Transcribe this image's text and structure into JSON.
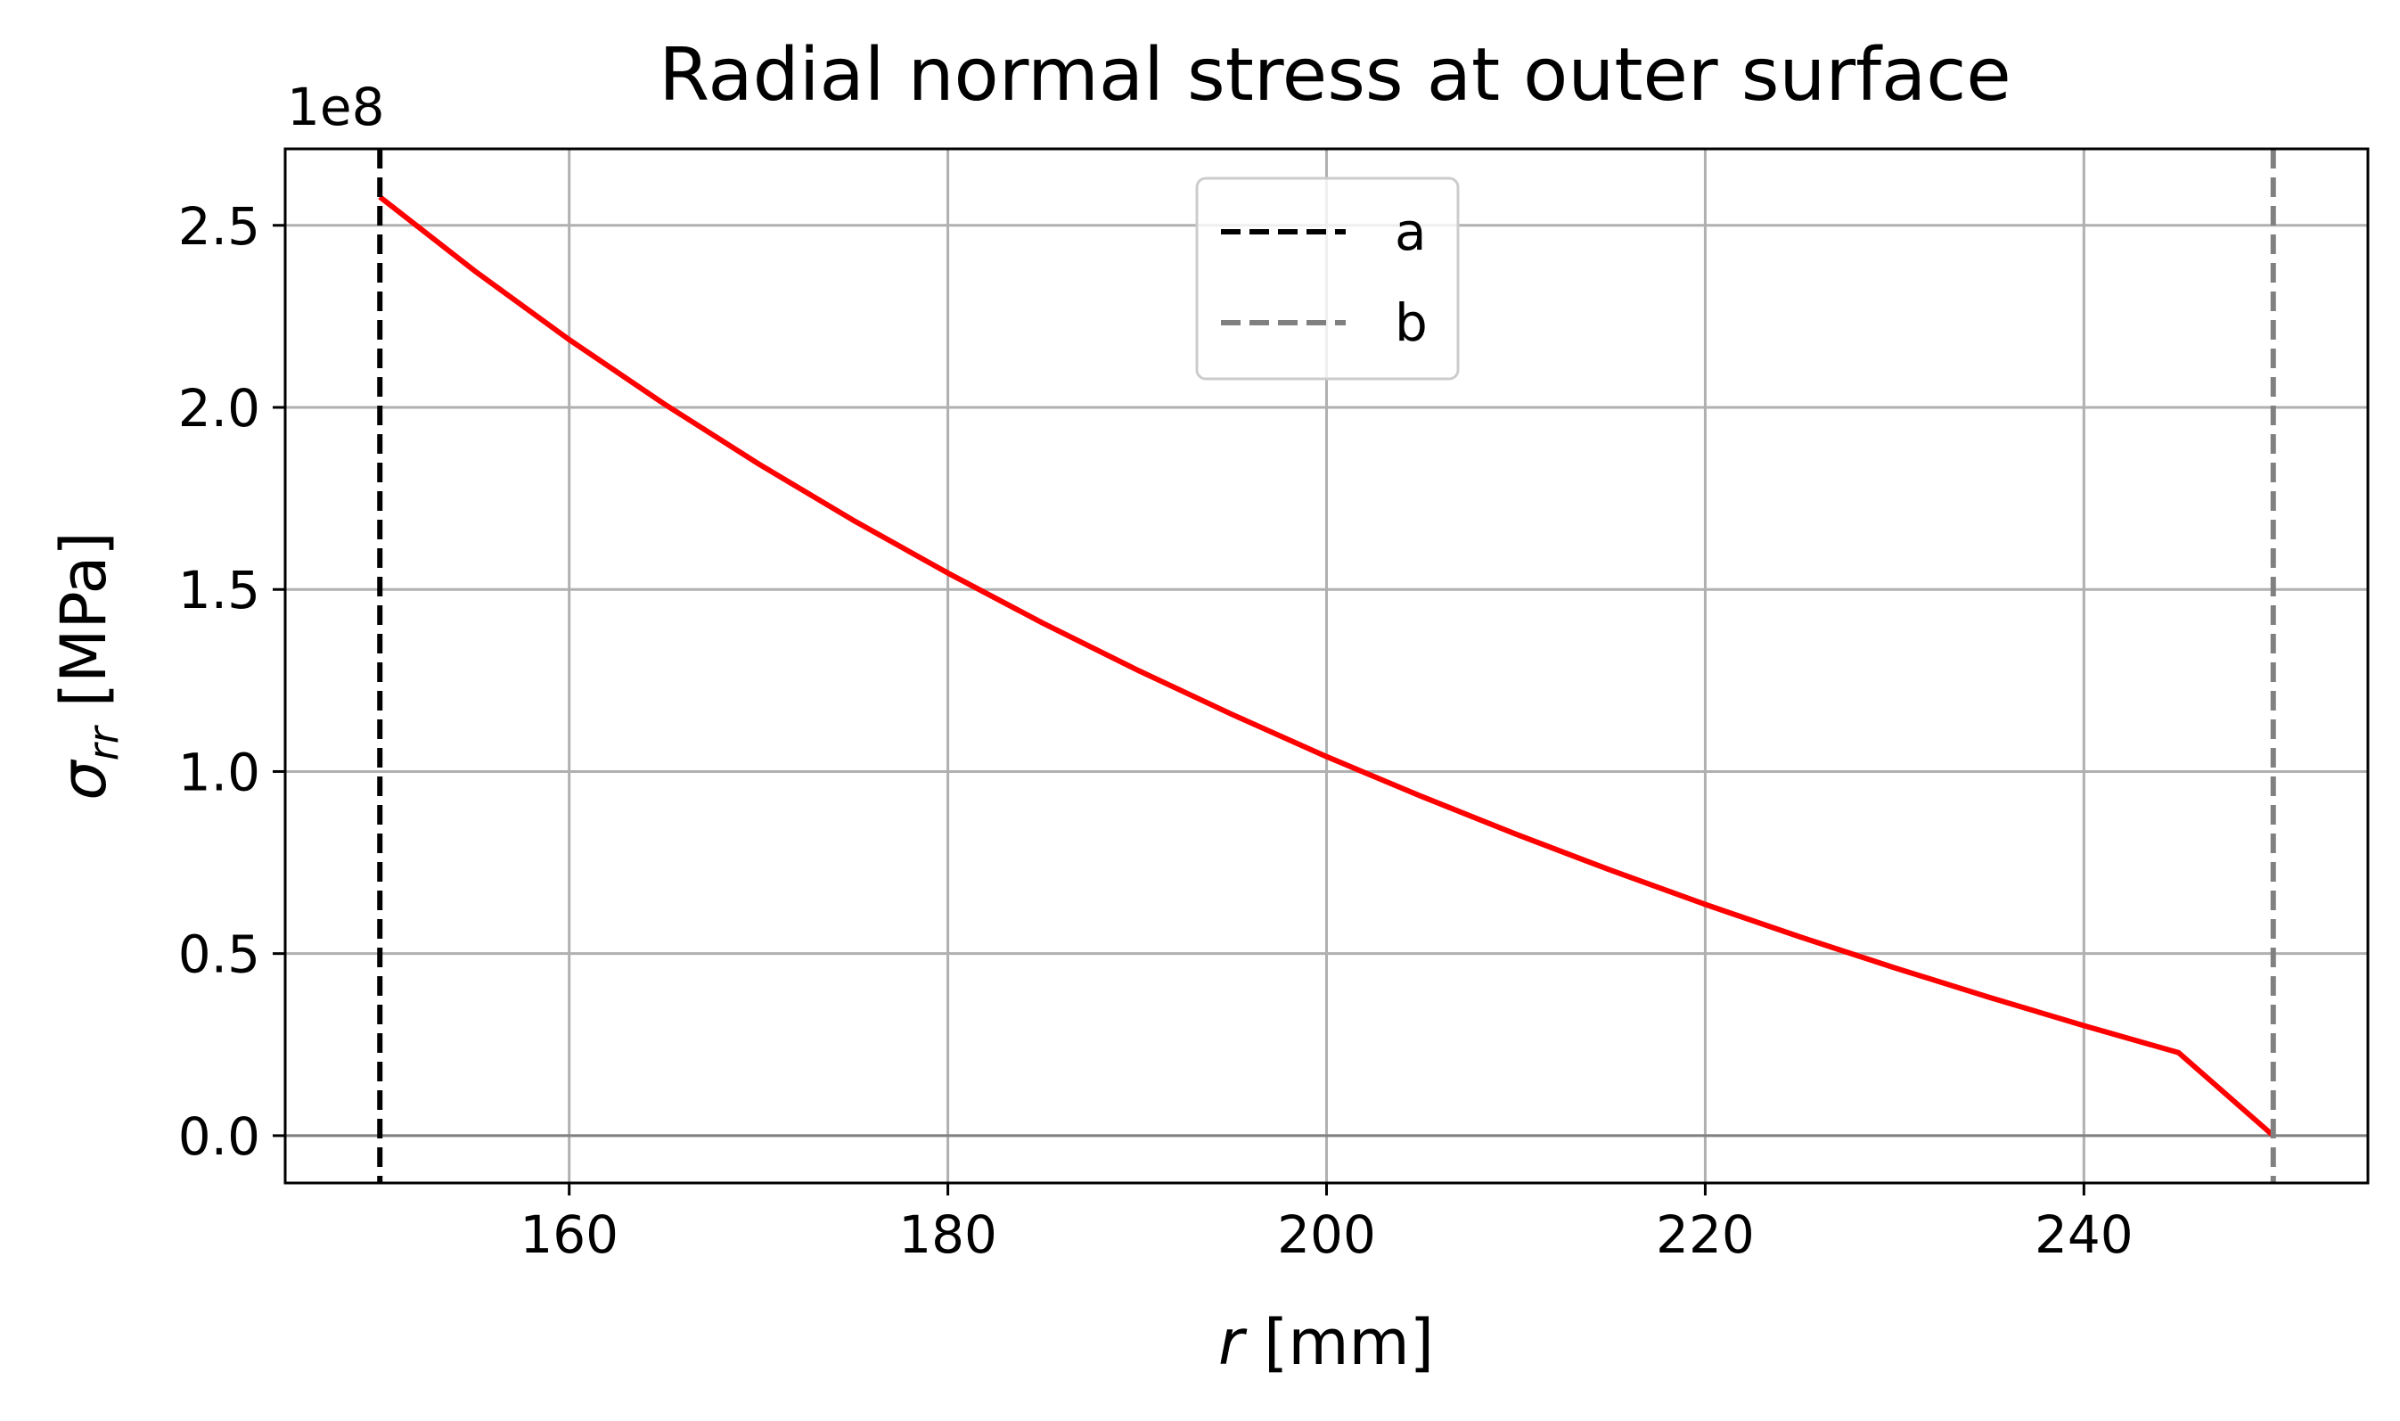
{
  "chart_data": {
    "type": "line",
    "title": "Radial normal stress at outer surface",
    "xlabel": {
      "symbol": "r",
      "unit": "[mm]"
    },
    "ylabel": {
      "symbol": "σ",
      "subscript": "rr",
      "unit": "[MPa]"
    },
    "y_offset_text": "1e8",
    "y_multiplier": 100000000,
    "xlim": [
      145,
      255
    ],
    "ylim": [
      -0.13,
      2.71
    ],
    "xticks": [
      160,
      180,
      200,
      220,
      240
    ],
    "xtick_labels": [
      "160",
      "180",
      "200",
      "220",
      "240"
    ],
    "yticks": [
      0.0,
      0.5,
      1.0,
      1.5,
      2.0,
      2.5
    ],
    "ytick_labels": [
      "0.0",
      "0.5",
      "1.0",
      "1.5",
      "2.0",
      "2.5"
    ],
    "grid": true,
    "legend_position": "top-center",
    "reference_line_y": 0,
    "series": [
      {
        "type": "line",
        "color": "#ff0000",
        "x": [
          150,
          155,
          160,
          165,
          170,
          175,
          180,
          185,
          190,
          195,
          200,
          205,
          210,
          215,
          220,
          225,
          230,
          235,
          240,
          245,
          250
        ],
        "y": [
          2.578,
          2.375,
          2.186,
          2.01,
          1.845,
          1.69,
          1.545,
          1.408,
          1.279,
          1.157,
          1.041,
          0.932,
          0.828,
          0.729,
          0.635,
          0.546,
          0.461,
          0.38,
          0.302,
          0.228,
          0.0
        ]
      },
      {
        "name": "a",
        "type": "vline",
        "x": 150,
        "color": "#000000",
        "dash": true
      },
      {
        "name": "b",
        "type": "vline",
        "x": 250,
        "color": "#808080",
        "dash": true
      }
    ]
  }
}
